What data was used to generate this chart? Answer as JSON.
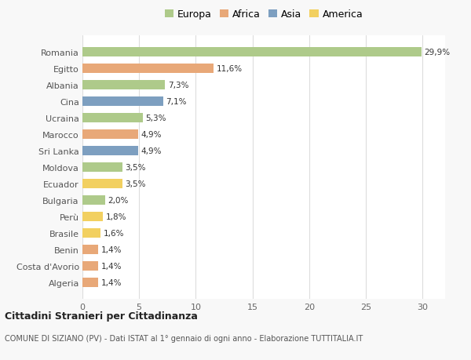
{
  "categories": [
    "Romania",
    "Egitto",
    "Albania",
    "Cina",
    "Ucraina",
    "Marocco",
    "Sri Lanka",
    "Moldova",
    "Ecuador",
    "Bulgaria",
    "Perù",
    "Brasile",
    "Benin",
    "Costa d'Avorio",
    "Algeria"
  ],
  "values": [
    29.9,
    11.6,
    7.3,
    7.1,
    5.3,
    4.9,
    4.9,
    3.5,
    3.5,
    2.0,
    1.8,
    1.6,
    1.4,
    1.4,
    1.4
  ],
  "labels": [
    "29,9%",
    "11,6%",
    "7,3%",
    "7,1%",
    "5,3%",
    "4,9%",
    "4,9%",
    "3,5%",
    "3,5%",
    "2,0%",
    "1,8%",
    "1,6%",
    "1,4%",
    "1,4%",
    "1,4%"
  ],
  "continent": [
    "Europa",
    "Africa",
    "Europa",
    "Asia",
    "Europa",
    "Africa",
    "Asia",
    "Europa",
    "America",
    "Europa",
    "America",
    "America",
    "Africa",
    "Africa",
    "Africa"
  ],
  "colors": {
    "Europa": "#aeca8a",
    "Africa": "#e8a878",
    "Asia": "#7d9fc0",
    "America": "#f2d060"
  },
  "xlim": [
    0,
    32
  ],
  "xticks": [
    0,
    5,
    10,
    15,
    20,
    25,
    30
  ],
  "title": "Cittadini Stranieri per Cittadinanza",
  "subtitle": "COMUNE DI SIZIANO (PV) - Dati ISTAT al 1° gennaio di ogni anno - Elaborazione TUTTITALIA.IT",
  "background_color": "#f8f8f8",
  "bar_background": "#ffffff",
  "grid_color": "#dddddd",
  "bar_height": 0.55
}
